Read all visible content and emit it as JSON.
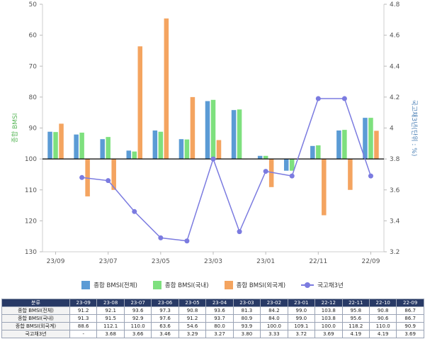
{
  "chart_data": {
    "type": "bar",
    "categories": [
      "23-09",
      "23-08",
      "23-07",
      "23-06",
      "23-05",
      "23-04",
      "23-03",
      "23-02",
      "23-01",
      "22-12",
      "22-11",
      "22-10",
      "22-09"
    ],
    "x_tick_labels": [
      "23/09",
      "23/07",
      "23/05",
      "23/03",
      "23/01",
      "22/11",
      "22/09"
    ],
    "series": [
      {
        "name": "종합 BMSI(전체)",
        "type": "bar",
        "axis": "left",
        "color": "#5b9bd5",
        "values": [
          91.2,
          92.1,
          93.6,
          97.3,
          90.8,
          93.6,
          81.3,
          84.2,
          99.0,
          103.8,
          95.8,
          90.8,
          86.7
        ]
      },
      {
        "name": "종합 BMSI(국내)",
        "type": "bar",
        "axis": "left",
        "color": "#7ee07e",
        "values": [
          91.3,
          91.5,
          92.9,
          97.6,
          91.2,
          93.7,
          80.9,
          84.0,
          99.0,
          103.8,
          95.6,
          90.6,
          86.7
        ]
      },
      {
        "name": "종합 BMSI(외국계)",
        "type": "bar",
        "axis": "left",
        "color": "#f4a460",
        "values": [
          88.6,
          112.1,
          110.0,
          63.6,
          54.6,
          80.0,
          93.9,
          100.0,
          109.1,
          100.0,
          118.2,
          110.0,
          90.9
        ]
      },
      {
        "name": "국고채3년",
        "type": "line",
        "axis": "right",
        "color": "#7b7be0",
        "values": [
          null,
          3.68,
          3.66,
          3.46,
          3.29,
          3.27,
          3.8,
          3.33,
          3.72,
          3.69,
          4.19,
          4.19,
          3.69
        ]
      }
    ],
    "left_axis": {
      "label": "종합 BMSI",
      "min": 50,
      "max": 130,
      "reversed": true,
      "ticks": [
        50,
        60,
        70,
        80,
        90,
        100,
        110,
        120,
        130
      ],
      "baseline": 100
    },
    "right_axis": {
      "label": "국고채3년(단위 : %)",
      "min": 3.2,
      "max": 4.8,
      "ticks": [
        "4.8",
        "4.6",
        "4.4",
        "4.2",
        "4",
        "3.8",
        "3.6",
        "3.4",
        "3.2"
      ]
    },
    "legend_position": "bottom"
  },
  "table": {
    "header": "분류",
    "periods": [
      "23-09",
      "23-08",
      "23-07",
      "23-06",
      "23-05",
      "23-04",
      "23-03",
      "23-02",
      "23-01",
      "22-12",
      "22-11",
      "22-10",
      "22-09"
    ],
    "rows": [
      {
        "label": "종합 BMSI(전체)",
        "cells": [
          "91.2",
          "92.1",
          "93.6",
          "97.3",
          "90.8",
          "93.6",
          "81.3",
          "84.2",
          "99.0",
          "103.8",
          "95.8",
          "90.8",
          "86.7"
        ]
      },
      {
        "label": "종합 BMSI(국내)",
        "cells": [
          "91.3",
          "91.5",
          "92.9",
          "97.6",
          "91.2",
          "93.7",
          "80.9",
          "84.0",
          "99.0",
          "103.8",
          "95.6",
          "90.6",
          "86.7"
        ]
      },
      {
        "label": "종합 BMSI(외국계)",
        "cells": [
          "88.6",
          "112.1",
          "110.0",
          "63.6",
          "54.6",
          "80.0",
          "93.9",
          "100.0",
          "109.1",
          "100.0",
          "118.2",
          "110.0",
          "90.9"
        ]
      },
      {
        "label": "국고채3년",
        "cells": [
          "-",
          "3.68",
          "3.66",
          "3.46",
          "3.29",
          "3.27",
          "3.80",
          "3.33",
          "3.72",
          "3.69",
          "4.19",
          "4.19",
          "3.69"
        ]
      }
    ]
  }
}
